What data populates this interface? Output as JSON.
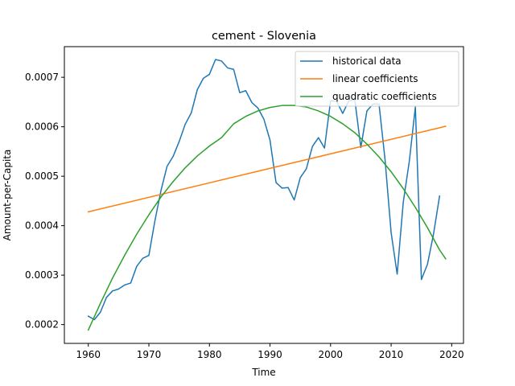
{
  "chart_data": {
    "type": "line",
    "title": "cement - Slovenia",
    "xlabel": "Time",
    "ylabel": "Amount-per-Capita",
    "xlim": [
      1956.05,
      2021.95
    ],
    "ylim": [
      0.000162,
      0.000762
    ],
    "xticks": [
      1960,
      1970,
      1980,
      1990,
      2000,
      2010,
      2020
    ],
    "yticks": [
      0.0002,
      0.0003,
      0.0004,
      0.0005,
      0.0006,
      0.0007
    ],
    "ytick_labels": [
      "0.0002",
      "0.0003",
      "0.0004",
      "0.0005",
      "0.0006",
      "0.0007"
    ],
    "grid": false,
    "legend_position": "top-right",
    "series": [
      {
        "name": "historical data",
        "color": "#1f77b4",
        "x": [
          1960,
          1961,
          1962,
          1963,
          1964,
          1965,
          1966,
          1967,
          1968,
          1969,
          1970,
          1971,
          1972,
          1973,
          1974,
          1975,
          1976,
          1977,
          1978,
          1979,
          1980,
          1981,
          1982,
          1983,
          1984,
          1985,
          1986,
          1987,
          1988,
          1989,
          1990,
          1991,
          1992,
          1993,
          1994,
          1995,
          1996,
          1997,
          1998,
          1999,
          2000,
          2001,
          2002,
          2003,
          2004,
          2005,
          2006,
          2007,
          2008,
          2009,
          2010,
          2011,
          2012,
          2013,
          2014,
          2015,
          2016,
          2017,
          2018
        ],
        "y": [
          0.000217,
          0.00021,
          0.000225,
          0.000255,
          0.000268,
          0.000272,
          0.00028,
          0.000284,
          0.000318,
          0.000334,
          0.00034,
          0.00041,
          0.000471,
          0.00052,
          0.00054,
          0.00057,
          0.000605,
          0.000628,
          0.000675,
          0.000698,
          0.000706,
          0.000736,
          0.000733,
          0.000719,
          0.000716,
          0.000669,
          0.000673,
          0.000649,
          0.000638,
          0.000615,
          0.000573,
          0.000487,
          0.000476,
          0.000477,
          0.000452,
          0.000497,
          0.000515,
          0.00056,
          0.000578,
          0.000557,
          0.000652,
          0.000652,
          0.000627,
          0.000652,
          0.000655,
          0.000558,
          0.000632,
          0.000646,
          0.000646,
          0.000533,
          0.000386,
          0.000302,
          0.000447,
          0.00053,
          0.00064,
          0.000291,
          0.000322,
          0.000383,
          0.00046
        ]
      },
      {
        "name": "linear coefficients",
        "color": "#ff7f0e",
        "x": [
          1960,
          2019
        ],
        "y": [
          0.000428,
          0.000601
        ]
      },
      {
        "name": "quadratic coefficients",
        "color": "#2ca02c",
        "x": [
          1960,
          1962,
          1964,
          1966,
          1968,
          1970,
          1972,
          1974,
          1976,
          1978,
          1980,
          1982,
          1984,
          1986,
          1988,
          1990,
          1992,
          1994,
          1996,
          1998,
          2000,
          2002,
          2004,
          2006,
          2008,
          2010,
          2012,
          2014,
          2016,
          2018,
          2019
        ],
        "y": [
          0.000189,
          0.000243,
          0.000294,
          0.00034,
          0.000383,
          0.000422,
          0.000458,
          0.000489,
          0.000517,
          0.000541,
          0.000561,
          0.000578,
          0.000606,
          0.000621,
          0.000632,
          0.000639,
          0.000643,
          0.000643,
          0.00064,
          0.000632,
          0.000621,
          0.000606,
          0.000588,
          0.000565,
          0.000539,
          0.000509,
          0.000475,
          0.000437,
          0.000396,
          0.000351,
          0.000333
        ]
      }
    ]
  }
}
